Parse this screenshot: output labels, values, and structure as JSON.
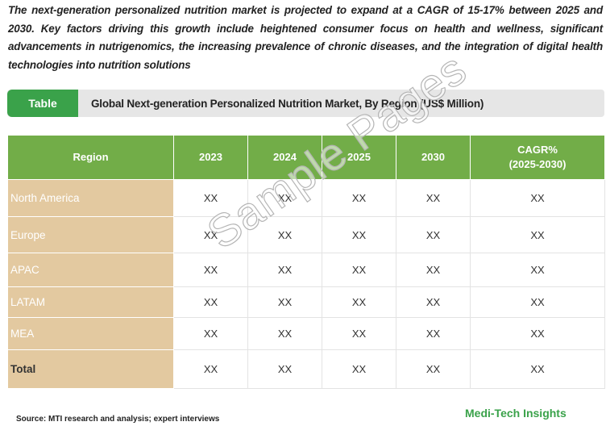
{
  "intro_text": "The next-generation personalized nutrition market is projected to expand at a CAGR of 15-17% between 2025 and 2030. Key factors driving this growth include heightened consumer focus on health and wellness, significant advancements in nutrigenomics, the increasing prevalence of chronic diseases, and the integration of digital health technologies into nutrition solutions",
  "title_tab": "Table",
  "title_text": "Global Next-generation Personalized Nutrition Market, By Region (US$ Million)",
  "table": {
    "headers": {
      "region": "Region",
      "y2023": "2023",
      "y2024": "2024",
      "y2025": "2025",
      "y2030": "2030",
      "cagr_line1": "CAGR%",
      "cagr_line2": "(2025-2030)"
    },
    "rows": [
      {
        "region": "North America",
        "v2023": "XX",
        "v2024": "XX",
        "v2025": "XX",
        "v2030": "XX",
        "cagr": "XX"
      },
      {
        "region": "Europe",
        "v2023": "XX",
        "v2024": "XX",
        "v2025": "XX",
        "v2030": "XX",
        "cagr": "XX"
      },
      {
        "region": "APAC",
        "v2023": "XX",
        "v2024": "XX",
        "v2025": "XX",
        "v2030": "XX",
        "cagr": "XX"
      },
      {
        "region": "LATAM",
        "v2023": "XX",
        "v2024": "XX",
        "v2025": "XX",
        "v2030": "XX",
        "cagr": "XX"
      },
      {
        "region": "MEA",
        "v2023": "XX",
        "v2024": "XX",
        "v2025": "XX",
        "v2030": "XX",
        "cagr": "XX"
      },
      {
        "region": "Total",
        "v2023": "XX",
        "v2024": "XX",
        "v2025": "XX",
        "v2030": "XX",
        "cagr": "XX"
      }
    ]
  },
  "watermark": "Sample Pages",
  "source": "Source: MTI research and analysis; expert interviews",
  "brand": "Medi-Tech Insights",
  "colors": {
    "header_green": "#72ad48",
    "tab_green": "#3aa24a",
    "region_tan": "#e3c9a0",
    "brand_green": "#3aa24a"
  }
}
